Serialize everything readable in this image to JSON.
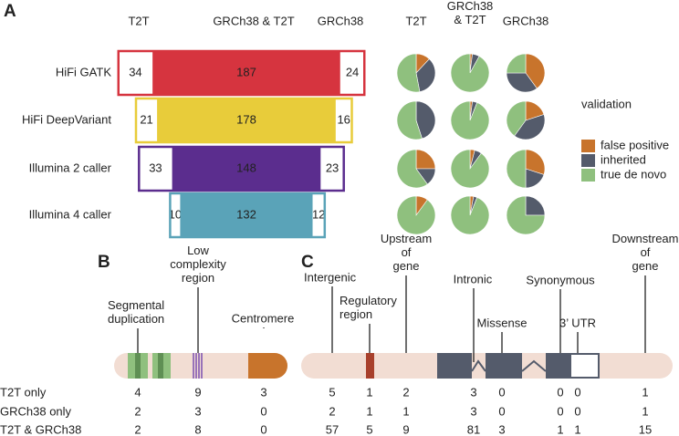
{
  "panel_letters": [
    "A",
    "B",
    "C"
  ],
  "chart_data": [
    {
      "type": "bar",
      "categories": [
        "HiFi GATK",
        "HiFi DeepVariant",
        "Illumina 2 caller",
        "Illumina 4 caller"
      ],
      "category_colors": [
        "#d6343f",
        "#e8cc3a",
        "#5b2d8e",
        "#5aa3b8"
      ],
      "series": [
        {
          "name": "T2T",
          "values": [
            34,
            21,
            33,
            10
          ]
        },
        {
          "name": "GRCh38 & T2T",
          "values": [
            187,
            178,
            148,
            132
          ]
        },
        {
          "name": "GRCh38",
          "values": [
            24,
            16,
            23,
            12
          ]
        }
      ]
    },
    {
      "type": "pie",
      "columns": [
        "T2T",
        "GRCh38\n& T2T",
        "GRCh38"
      ],
      "legend_title": "validation",
      "labels": [
        "false positive",
        "inherited",
        "true de novo"
      ],
      "colors": [
        "#c8742c",
        "#545b6b",
        "#8fc07e"
      ],
      "values": [
        [
          [
            12,
            35,
            53
          ],
          [
            2,
            6,
            92
          ],
          [
            40,
            35,
            25
          ]
        ],
        [
          [
            0,
            45,
            55
          ],
          [
            2,
            4,
            94
          ],
          [
            20,
            40,
            40
          ]
        ],
        [
          [
            25,
            15,
            60
          ],
          [
            4,
            6,
            90
          ],
          [
            30,
            20,
            50
          ]
        ],
        [
          [
            10,
            0,
            90
          ],
          [
            3,
            3,
            94
          ],
          [
            0,
            25,
            75
          ]
        ]
      ]
    }
  ],
  "row_labels": [
    "T2T only",
    "GRCh38 only",
    "T2T & GRCh38"
  ],
  "panel_b": {
    "features": [
      {
        "label": "Segmental\nduplication",
        "counts": [
          4,
          2,
          2
        ]
      },
      {
        "label": "Low\ncomplexity\nregion",
        "counts": [
          9,
          3,
          8
        ]
      },
      {
        "label": "Centromere",
        "counts": [
          3,
          0,
          0
        ]
      }
    ]
  },
  "panel_c": {
    "features": [
      {
        "label": "Intergenic",
        "counts": [
          5,
          2,
          57
        ]
      },
      {
        "label": "Regulatory\nregion",
        "counts": [
          1,
          1,
          5
        ]
      },
      {
        "label": "Upstream\nof\ngene",
        "counts": [
          2,
          1,
          9
        ]
      },
      {
        "label": "Intronic",
        "counts": [
          3,
          3,
          81
        ]
      },
      {
        "label": "Missense",
        "counts": [
          0,
          0,
          3
        ]
      },
      {
        "label": "Synonymous",
        "counts": [
          0,
          0,
          1
        ]
      },
      {
        "label": "3’ UTR",
        "counts": [
          0,
          0,
          1
        ]
      },
      {
        "label": "Downstream\nof\ngene",
        "counts": [
          1,
          1,
          15
        ]
      }
    ]
  }
}
